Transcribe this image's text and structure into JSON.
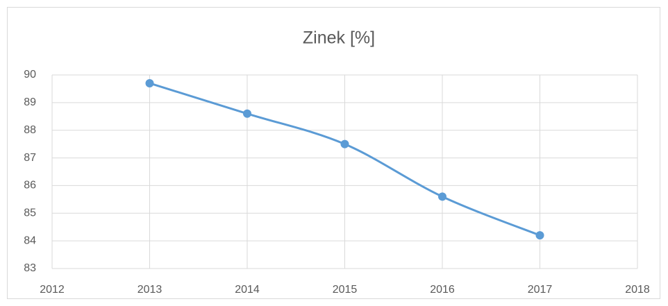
{
  "chart_data": {
    "type": "line",
    "title": "Zinek [%]",
    "x": [
      2013,
      2014,
      2015,
      2016,
      2017
    ],
    "series": [
      {
        "name": "Zinek [%]",
        "color": "#5b9bd5",
        "values": [
          89.7,
          88.6,
          87.5,
          85.6,
          84.2
        ]
      }
    ],
    "xlim": [
      2012,
      2018
    ],
    "xticks": [
      2012,
      2013,
      2014,
      2015,
      2016,
      2017,
      2018
    ],
    "ylim": [
      83,
      90
    ],
    "yticks": [
      83,
      84,
      85,
      86,
      87,
      88,
      89,
      90
    ],
    "grid": true,
    "smooth": true
  }
}
